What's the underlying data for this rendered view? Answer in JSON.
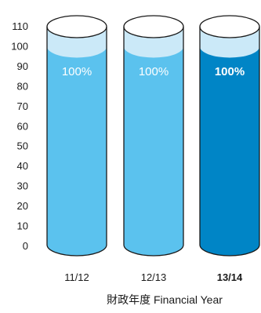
{
  "chart_data": {
    "type": "bar",
    "style": "cylinder",
    "categories": [
      "11/12",
      "12/13",
      "13/14"
    ],
    "values": [
      100,
      100,
      100
    ],
    "data_labels": [
      "100%",
      "100%",
      "100%"
    ],
    "highlight_index": 2,
    "yticks": [
      "110",
      "100",
      "90",
      "80",
      "70",
      "60",
      "50",
      "40",
      "30",
      "20",
      "10",
      "0"
    ],
    "ylim": [
      0,
      110
    ],
    "xlabel": "財政年度  Financial Year",
    "grid": false,
    "colors": {
      "normal_fill": "#5bc2ee",
      "highlight_fill": "#0085c6",
      "top_band": "#cbe9f8",
      "outline": "#1a1a1a"
    }
  }
}
